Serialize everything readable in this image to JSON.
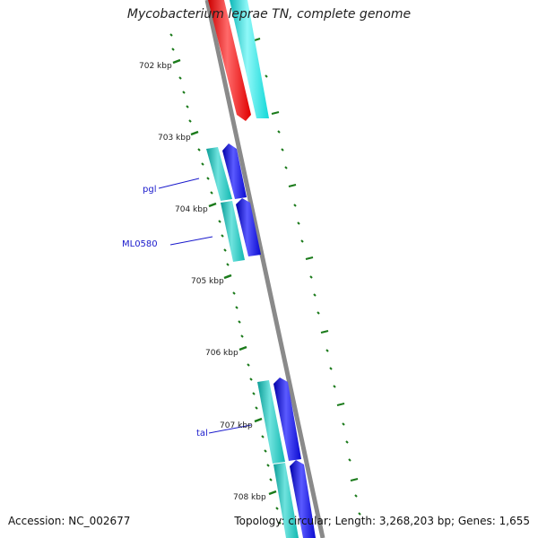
{
  "title": "Mycobacterium leprae TN, complete genome",
  "footer": {
    "accession": "Accession: NC_002677",
    "summary": "Topology: circular; Length: 3,268,203 bp; Genes: 1,655"
  },
  "colors": {
    "backbone": "#8a8a8a",
    "tick": "#1a7a1a",
    "gene_label": "#1a1acc",
    "cyan_feature": "#19e6e6",
    "teal_feature": "#16c8c0",
    "red_feature": "#ff1010",
    "blue_feature": "#1414e0"
  },
  "scale_labels": [
    "702 kbp",
    "703 kbp",
    "704 kbp",
    "705 kbp",
    "706 kbp",
    "707 kbp",
    "708 kbp"
  ],
  "gene_labels": [
    "pgl",
    "ML0580",
    "tal"
  ]
}
